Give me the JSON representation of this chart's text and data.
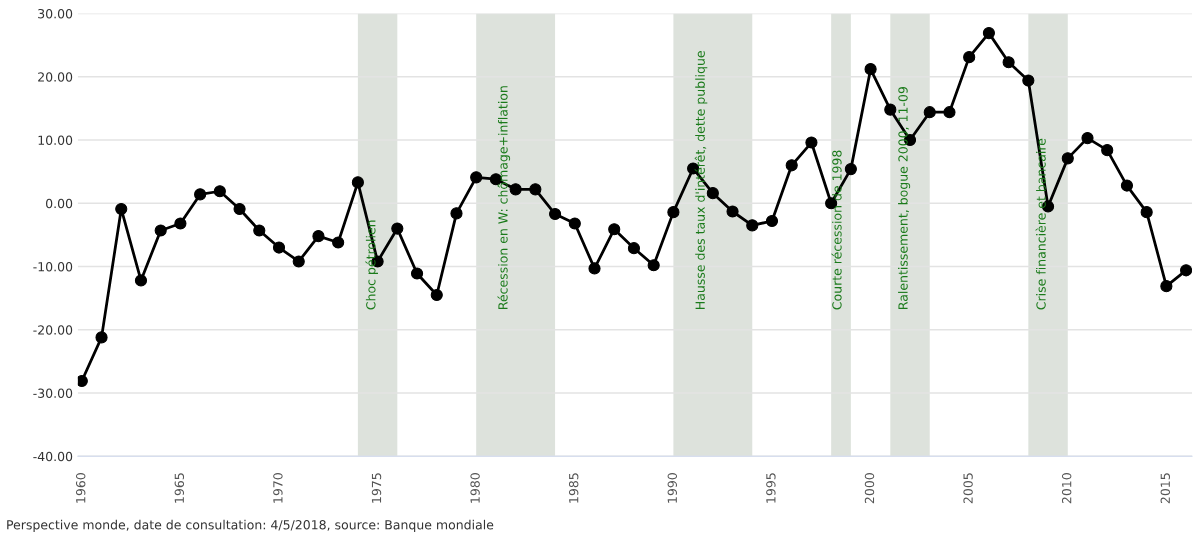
{
  "chart_data": {
    "type": "line",
    "x": [
      1960,
      1961,
      1962,
      1963,
      1964,
      1965,
      1966,
      1967,
      1968,
      1969,
      1970,
      1971,
      1972,
      1973,
      1974,
      1975,
      1976,
      1977,
      1978,
      1979,
      1980,
      1981,
      1982,
      1983,
      1984,
      1985,
      1986,
      1987,
      1988,
      1989,
      1990,
      1991,
      1992,
      1993,
      1994,
      1995,
      1996,
      1997,
      1998,
      1999,
      2000,
      2001,
      2002,
      2003,
      2004,
      2005,
      2006,
      2007,
      2008,
      2009,
      2010,
      2011,
      2012,
      2013,
      2014,
      2015,
      2016
    ],
    "series": [
      {
        "color": "#000000",
        "values": [
          -28.1,
          -21.2,
          -0.9,
          -12.2,
          -4.3,
          -3.2,
          1.4,
          1.9,
          -0.9,
          -4.3,
          -7.0,
          -9.2,
          -5.2,
          -6.2,
          3.3,
          -9.2,
          -4.0,
          -11.1,
          -14.5,
          -1.6,
          4.1,
          3.8,
          2.2,
          2.2,
          -1.7,
          -3.2,
          -10.3,
          -4.1,
          -7.1,
          -9.8,
          -1.4,
          5.5,
          1.6,
          -1.3,
          -3.5,
          -2.8,
          6.0,
          9.6,
          0.0,
          5.4,
          21.2,
          14.8,
          10.0,
          14.4,
          14.4,
          23.1,
          26.9,
          22.3,
          19.4,
          -0.5,
          7.1,
          10.3,
          8.4,
          2.8,
          -1.4,
          -13.1,
          -10.6
        ]
      }
    ],
    "xlim": [
      1959.8,
      2016.3
    ],
    "xticks": [
      1960,
      1965,
      1970,
      1975,
      1980,
      1985,
      1990,
      1995,
      2000,
      2005,
      2010,
      2015
    ],
    "ylim": [
      -40,
      30
    ],
    "yticks": [
      {
        "value": -40,
        "label": "-40.00"
      },
      {
        "value": -30,
        "label": "-30.00"
      },
      {
        "value": -20,
        "label": "-20.00"
      },
      {
        "value": -10,
        "label": "-10.00"
      },
      {
        "value": 0,
        "label": "0.00"
      },
      {
        "value": 10,
        "label": "10.00"
      },
      {
        "value": 20,
        "label": "20.00"
      },
      {
        "value": 30,
        "label": "30.00"
      }
    ],
    "grid": "y",
    "marker": "circle",
    "line_style": "solid",
    "legend": false,
    "bands": [
      {
        "axis": "x",
        "from": 1974,
        "to": 1976,
        "label": "Choc pétrolien",
        "color": "#dde2dc"
      },
      {
        "axis": "x",
        "from": 1980,
        "to": 1984,
        "label": "Récession en W: chômage+inflation",
        "color": "#dde2dc"
      },
      {
        "axis": "x",
        "from": 1990,
        "to": 1994,
        "label": "Hausse des taux d'intérêt, dette publique",
        "color": "#dde2dc"
      },
      {
        "axis": "x",
        "from": 1998,
        "to": 1999,
        "label": "Courte récession de 1998",
        "color": "#dde2dc"
      },
      {
        "axis": "x",
        "from": 2001,
        "to": 2003,
        "label": "Ralentissement, bogue 2000, 11-09",
        "color": "#dde2dc"
      },
      {
        "axis": "x",
        "from": 2008,
        "to": 2010,
        "label": "Crise financière et bancaire",
        "color": "#dde2dc"
      }
    ],
    "annotations": [
      "Perspective monde, date de consultation: 4/5/2018, source: Banque mondiale"
    ]
  }
}
